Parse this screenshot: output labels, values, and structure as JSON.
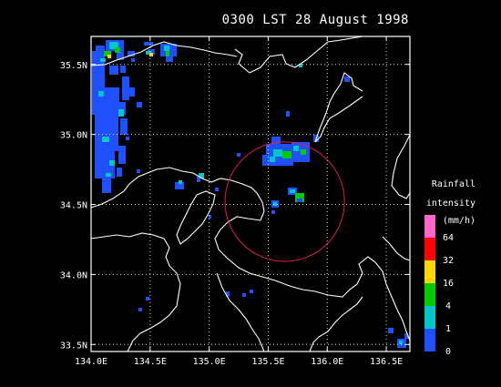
{
  "title": "0300 LST 28 August 1998",
  "axes": {
    "x_ticks": [
      "134.0E",
      "134.5E",
      "135.0E",
      "135.5E",
      "136.0E",
      "136.5E"
    ],
    "y_ticks": [
      "35.5N",
      "35.0N",
      "34.5N",
      "34.0N",
      "33.5N"
    ]
  },
  "legend": {
    "title_lines": [
      "Rainfall",
      "intensity",
      "(mm/h)"
    ],
    "levels": [
      "64",
      "32",
      "16",
      "4",
      "1",
      "0"
    ],
    "colors": [
      "#ff66cc",
      "#ff0000",
      "#ffd700",
      "#00cc00",
      "#00c8c8",
      "#1e50ff"
    ]
  },
  "colors": {
    "background": "#000000",
    "frame": "#ffffff",
    "coastline": "#ffffff",
    "gridline": "#ffffff",
    "range_circle": "#e0204a"
  },
  "map": {
    "lon_range": [
      134.0,
      136.7
    ],
    "lat_range": [
      33.45,
      35.7
    ],
    "radar_range_circle": {
      "center_lon": 135.64,
      "center_lat": 34.52,
      "radius_deg": 0.55
    }
  }
}
